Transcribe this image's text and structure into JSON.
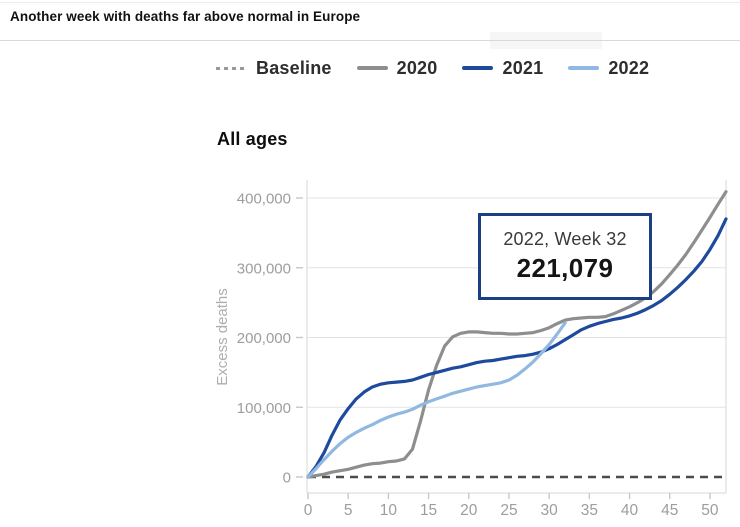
{
  "header": {
    "title": "Another week with deaths far above normal in Europe"
  },
  "legend": {
    "items": [
      {
        "label": "Baseline",
        "style": "dashed",
        "color": "#999999"
      },
      {
        "label": "2020",
        "style": "solid",
        "color": "#8e8e8e"
      },
      {
        "label": "2021",
        "style": "solid",
        "color": "#1e4a9d"
      },
      {
        "label": "2022",
        "style": "solid",
        "color": "#90b8e0"
      }
    ]
  },
  "section": {
    "title": "All ages"
  },
  "tooltip": {
    "label": "2022, Week 32",
    "value": "221,079",
    "border_color": "#1b3f85"
  },
  "chart_data": {
    "type": "line",
    "title": "All ages",
    "xlabel": "",
    "ylabel": "Excess deaths",
    "xlim": [
      0,
      52
    ],
    "ylim": [
      -23000,
      425000
    ],
    "grid": "horizontal",
    "legend_position": "top",
    "xticks": [
      0,
      5,
      10,
      15,
      20,
      25,
      30,
      35,
      40,
      45,
      50
    ],
    "yticks": [
      0,
      100000,
      200000,
      300000,
      400000
    ],
    "ytick_labels": [
      "0",
      "100,000",
      "200,000",
      "300,000",
      "400,000"
    ],
    "baseline": {
      "name": "Baseline",
      "value": 0,
      "style": "dashed",
      "color": "#4c4c4c"
    },
    "series": [
      {
        "name": "2020",
        "color": "#8e8e8e",
        "start_week": 0,
        "values": [
          0,
          2000,
          4000,
          7000,
          9000,
          11000,
          14000,
          17000,
          19000,
          20000,
          22000,
          23000,
          26000,
          40000,
          80000,
          125000,
          160000,
          188000,
          201000,
          206000,
          208000,
          208000,
          207000,
          206000,
          206000,
          205000,
          205000,
          206000,
          207000,
          210000,
          214000,
          220000,
          225000,
          227000,
          228000,
          229000,
          229000,
          230000,
          234000,
          239000,
          244000,
          250000,
          257000,
          266000,
          277000,
          290000,
          304000,
          319000,
          336000,
          354000,
          372000,
          391000,
          409000
        ]
      },
      {
        "name": "2021",
        "color": "#1e4a9d",
        "start_week": 0,
        "values": [
          0,
          15000,
          35000,
          60000,
          82000,
          98000,
          112000,
          122000,
          129000,
          133000,
          135000,
          136000,
          137000,
          139000,
          143000,
          147000,
          150000,
          153000,
          156000,
          158000,
          161000,
          164000,
          166000,
          167000,
          169000,
          171000,
          173000,
          174000,
          176000,
          179000,
          184000,
          190000,
          197000,
          204000,
          211000,
          216000,
          220000,
          223000,
          226000,
          228000,
          231000,
          235000,
          240000,
          246000,
          253000,
          262000,
          272000,
          283000,
          295000,
          309000,
          326000,
          346000,
          370000
        ]
      },
      {
        "name": "2022",
        "color": "#90b8e0",
        "start_week": 0,
        "values": [
          0,
          12000,
          25000,
          37000,
          48000,
          57000,
          64000,
          70000,
          75000,
          81000,
          86000,
          90000,
          93000,
          97000,
          103000,
          108000,
          112000,
          116000,
          120000,
          123000,
          126000,
          129000,
          131000,
          133000,
          135000,
          139000,
          146000,
          155000,
          165000,
          177000,
          190000,
          205000,
          221079
        ]
      }
    ],
    "annotation": {
      "series": "2022",
      "week": 32,
      "value": 221079,
      "label": "2022, Week 32",
      "value_text": "221,079"
    }
  }
}
